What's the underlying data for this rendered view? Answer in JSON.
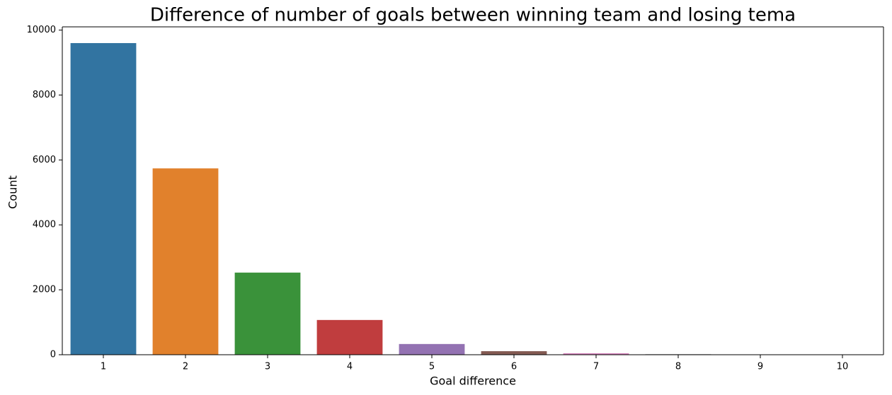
{
  "chart_data": {
    "type": "bar",
    "title": "Difference of number of goals between winning team and losing tema",
    "x_label": "Goal difference",
    "y_label": "Count",
    "categories": [
      "1",
      "2",
      "3",
      "4",
      "5",
      "6",
      "7",
      "8",
      "9",
      "10"
    ],
    "values": [
      9600,
      5740,
      2530,
      1070,
      330,
      110,
      45,
      15,
      5,
      2
    ],
    "colors": [
      "#3274a1",
      "#e1812c",
      "#3a923a",
      "#c03d3e",
      "#9372b2",
      "#845b53",
      "#d684bd",
      "#7f7f7f",
      "#a9aa35",
      "#2eb1c2"
    ],
    "ylim": [
      0,
      10100
    ],
    "yticks": [
      0,
      2000,
      4000,
      6000,
      8000,
      10000
    ],
    "grid": false
  }
}
